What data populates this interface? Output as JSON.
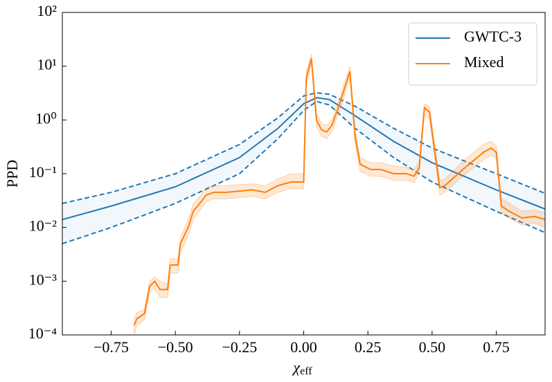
{
  "chart_data": {
    "type": "line",
    "xlabel": {
      "symbol": "χ",
      "subscript": "eff"
    },
    "ylabel": "PPD",
    "log_y": true,
    "legend": "upper right",
    "xlim": [
      -0.94,
      0.94
    ],
    "xticks": [
      {
        "value": -0.75,
        "label": "−0.75"
      },
      {
        "value": -0.5,
        "label": "−0.50"
      },
      {
        "value": -0.25,
        "label": "−0.25"
      },
      {
        "value": 0,
        "label": "0.00"
      },
      {
        "value": 0.25,
        "label": "0.25"
      },
      {
        "value": 0.5,
        "label": "0.50"
      },
      {
        "value": 0.75,
        "label": "0.75"
      }
    ],
    "ylim": [
      0.0001,
      100
    ],
    "yticks": [
      {
        "value": 0.0001,
        "label": "10⁻⁴"
      },
      {
        "value": 0.001,
        "label": "10⁻³"
      },
      {
        "value": 0.01,
        "label": "10⁻²"
      },
      {
        "value": 0.1,
        "label": "10⁻¹"
      },
      {
        "value": 1,
        "label": "10⁰"
      },
      {
        "value": 10,
        "label": "10¹"
      },
      {
        "value": 100,
        "label": "10²"
      }
    ],
    "series": [
      {
        "name": "GWTC-3",
        "color": "#1f77b4",
        "bound_lines": "dashed",
        "x": [
          -0.94,
          -0.75,
          -0.5,
          -0.25,
          -0.1,
          0,
          0.05,
          0.1,
          0.2,
          0.35,
          0.5,
          0.75,
          0.94
        ],
        "values": [
          0.014,
          0.025,
          0.057,
          0.2,
          0.7,
          2.0,
          2.6,
          2.4,
          1.2,
          0.4,
          0.16,
          0.05,
          0.022
        ],
        "upper": [
          0.028,
          0.045,
          0.1,
          0.35,
          1.1,
          2.8,
          3.2,
          3.0,
          1.8,
          0.7,
          0.3,
          0.1,
          0.043
        ],
        "lower": [
          0.005,
          0.01,
          0.028,
          0.1,
          0.45,
          1.5,
          2.2,
          1.9,
          0.7,
          0.2,
          0.07,
          0.02,
          0.008
        ]
      },
      {
        "name": "Mixed",
        "color": "#ff7f0e",
        "x": [
          -0.66,
          -0.65,
          -0.62,
          -0.6,
          -0.58,
          -0.56,
          -0.53,
          -0.52,
          -0.49,
          -0.48,
          -0.45,
          -0.43,
          -0.4,
          -0.38,
          -0.35,
          -0.3,
          -0.2,
          -0.15,
          -0.1,
          -0.05,
          -0.02,
          -0.01,
          0.0,
          0.01,
          0.03,
          0.05,
          0.07,
          0.09,
          0.11,
          0.14,
          0.18,
          0.2,
          0.22,
          0.26,
          0.3,
          0.35,
          0.4,
          0.43,
          0.45,
          0.47,
          0.49,
          0.5,
          0.53,
          0.55,
          0.62,
          0.7,
          0.73,
          0.75,
          0.77,
          0.8,
          0.85,
          0.9,
          0.94
        ],
        "values": [
          0.00015,
          0.0002,
          0.00025,
          0.0008,
          0.001,
          0.0007,
          0.0007,
          0.002,
          0.002,
          0.005,
          0.01,
          0.02,
          0.03,
          0.04,
          0.045,
          0.045,
          0.05,
          0.045,
          0.06,
          0.07,
          0.07,
          0.07,
          0.07,
          6,
          14,
          1.0,
          0.65,
          0.6,
          0.8,
          2.0,
          8,
          0.5,
          0.15,
          0.12,
          0.12,
          0.1,
          0.1,
          0.09,
          0.13,
          1.7,
          1.4,
          0.6,
          0.055,
          0.06,
          0.12,
          0.25,
          0.3,
          0.25,
          0.025,
          0.02,
          0.015,
          0.016,
          0.014
        ],
        "upper": [
          0.0002,
          0.00026,
          0.0003,
          0.001,
          0.0012,
          0.001,
          0.0009,
          0.0026,
          0.0026,
          0.0065,
          0.014,
          0.028,
          0.04,
          0.055,
          0.06,
          0.06,
          0.065,
          0.06,
          0.08,
          0.1,
          0.1,
          0.1,
          0.1,
          8,
          17,
          1.3,
          0.85,
          0.8,
          1.0,
          2.6,
          10,
          0.65,
          0.2,
          0.16,
          0.16,
          0.14,
          0.13,
          0.12,
          0.17,
          2.0,
          1.8,
          0.8,
          0.075,
          0.08,
          0.17,
          0.35,
          0.4,
          0.33,
          0.035,
          0.028,
          0.02,
          0.021,
          0.019
        ],
        "lower": [
          0.0001,
          0.00015,
          0.00019,
          0.0006,
          0.00075,
          0.0005,
          0.0005,
          0.0014,
          0.0014,
          0.0035,
          0.007,
          0.014,
          0.022,
          0.03,
          0.034,
          0.034,
          0.038,
          0.034,
          0.045,
          0.052,
          0.052,
          0.052,
          0.052,
          4.5,
          11,
          0.75,
          0.5,
          0.45,
          0.6,
          1.5,
          6,
          0.37,
          0.11,
          0.09,
          0.09,
          0.075,
          0.075,
          0.068,
          0.1,
          1.3,
          1.0,
          0.45,
          0.04,
          0.045,
          0.09,
          0.18,
          0.22,
          0.19,
          0.018,
          0.015,
          0.011,
          0.012,
          0.01
        ]
      }
    ]
  }
}
